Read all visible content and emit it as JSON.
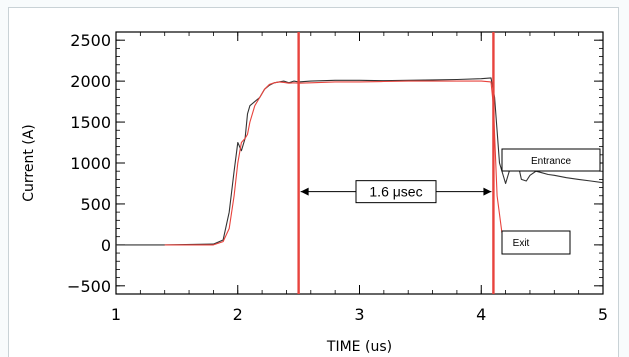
{
  "chart_data": {
    "type": "line",
    "xlabel": "TIME   (us)",
    "ylabel": "Current  (A)",
    "xlim": [
      1,
      5
    ],
    "ylim": [
      -600,
      2600
    ],
    "x_ticks": [
      1,
      2,
      3,
      4,
      5
    ],
    "y_ticks": [
      -500,
      0,
      500,
      1000,
      1500,
      2000,
      2500
    ],
    "grid": false,
    "series": [
      {
        "name": "Entrance",
        "color": "#333333",
        "x": [
          1.0,
          1.4,
          1.8,
          1.88,
          1.93,
          1.97,
          2.0,
          2.03,
          2.06,
          2.08,
          2.1,
          2.14,
          2.18,
          2.22,
          2.26,
          2.3,
          2.34,
          2.38,
          2.42,
          2.46,
          2.5,
          2.6,
          2.8,
          3.0,
          3.2,
          3.4,
          3.6,
          3.8,
          4.0,
          4.08,
          4.11,
          4.15,
          4.2,
          4.24,
          4.27,
          4.3,
          4.33,
          4.37,
          4.4,
          4.45,
          4.5,
          4.55,
          4.6,
          4.7,
          4.8,
          4.9,
          5.0
        ],
        "y": [
          0,
          0,
          10,
          60,
          400,
          900,
          1250,
          1150,
          1300,
          1600,
          1700,
          1750,
          1800,
          1900,
          1950,
          1980,
          1990,
          2000,
          1980,
          2000,
          1990,
          2000,
          2010,
          2010,
          2005,
          2010,
          2015,
          2020,
          2030,
          2040,
          1800,
          1000,
          750,
          950,
          1150,
          1000,
          800,
          780,
          850,
          900,
          880,
          860,
          850,
          820,
          800,
          780,
          760
        ]
      },
      {
        "name": "Exit",
        "color": "#e8433d",
        "x": [
          1.4,
          1.8,
          1.88,
          1.93,
          1.97,
          2.0,
          2.03,
          2.06,
          2.08,
          2.1,
          2.14,
          2.18,
          2.22,
          2.26,
          2.3,
          2.34,
          2.38,
          2.42,
          2.46,
          2.5,
          2.6,
          2.8,
          3.0,
          3.2,
          3.4,
          3.6,
          3.8,
          4.0,
          4.08,
          4.1,
          4.13,
          4.17,
          4.2,
          4.25,
          4.3
        ],
        "y": [
          0,
          0,
          40,
          200,
          600,
          1000,
          1250,
          1300,
          1350,
          1500,
          1700,
          1800,
          1900,
          1960,
          1980,
          1990,
          1985,
          1975,
          1980,
          1975,
          1980,
          1990,
          1990,
          1995,
          2000,
          2000,
          2000,
          2000,
          1990,
          1700,
          600,
          150,
          20,
          0,
          0
        ]
      }
    ],
    "markers_x": [
      2.5,
      4.1
    ],
    "marker_color": "#e8433d",
    "annotations": {
      "duration_label": "1.6 μsec",
      "entrance_label": "Entrance",
      "exit_label": "Exit"
    }
  }
}
